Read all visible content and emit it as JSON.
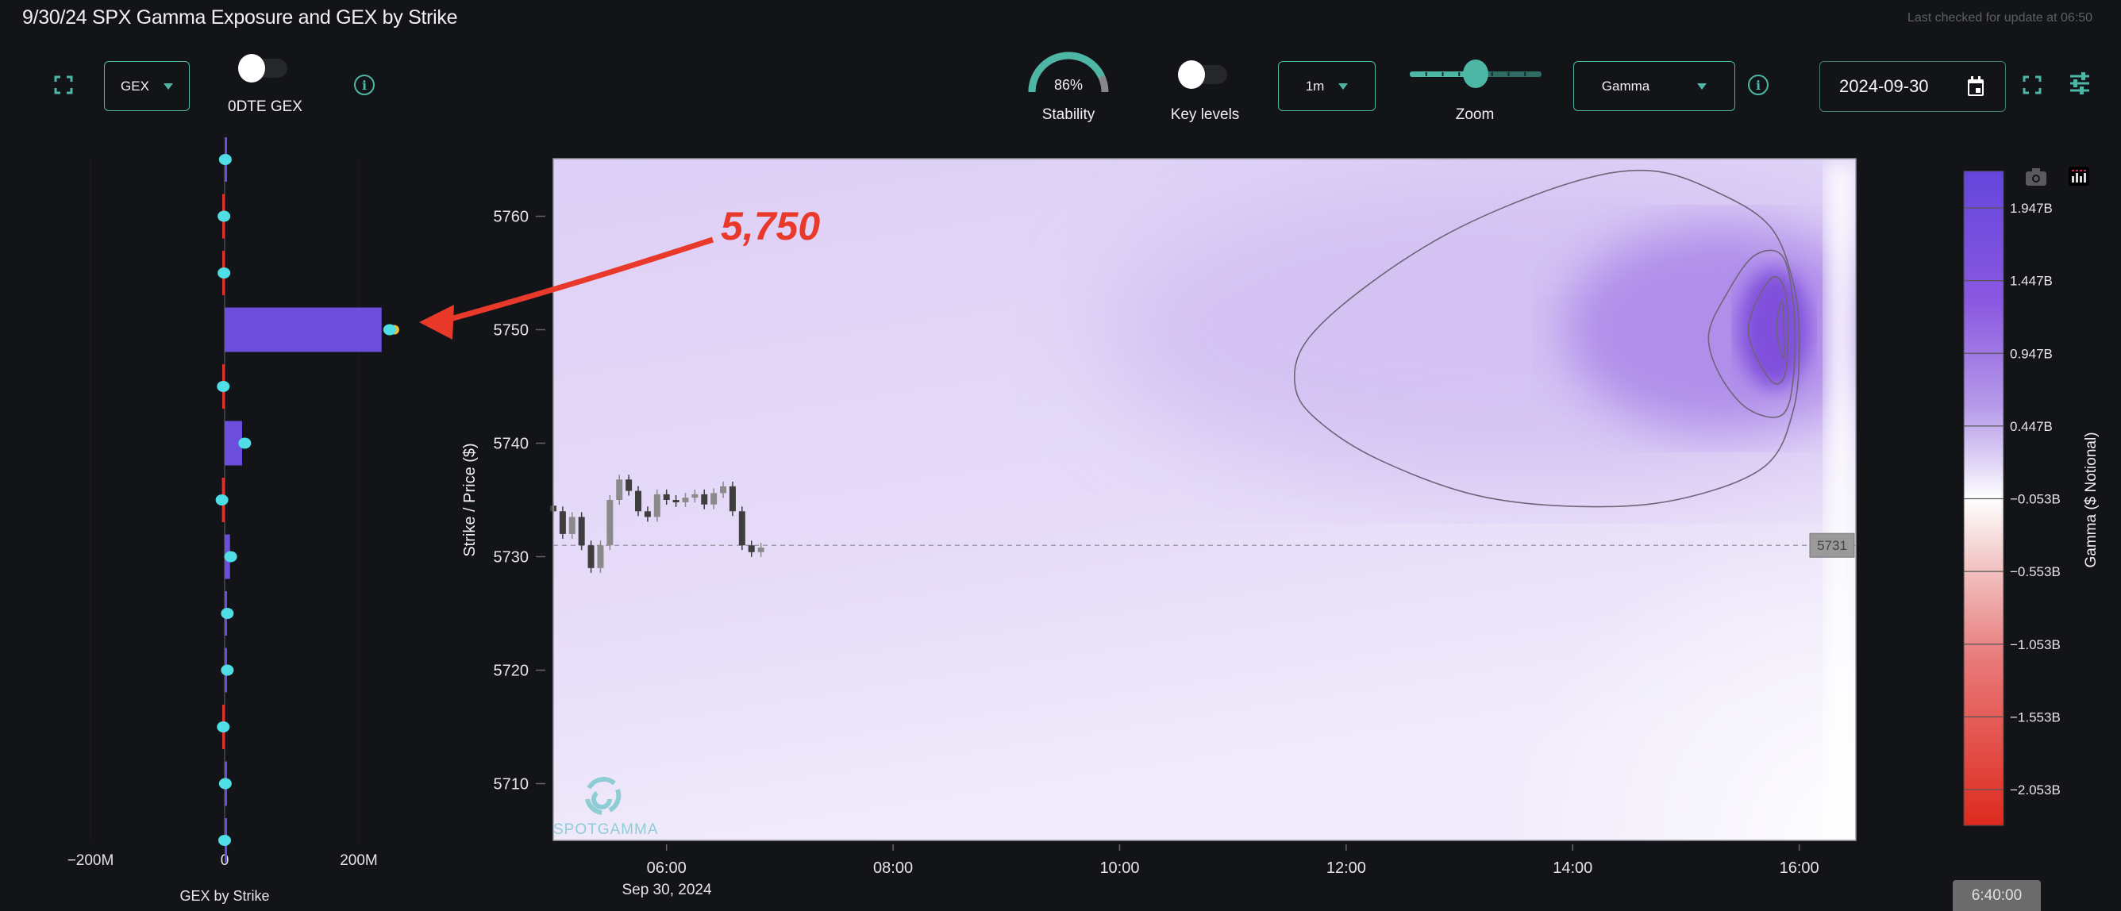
{
  "header": {
    "title": "9/30/24 SPX Gamma Exposure and GEX by Strike",
    "last_checked": "Last checked for update at 06:50"
  },
  "toolbar": {
    "gex_select": "GEX",
    "dte_label": "0DTE GEX",
    "dte_on": false,
    "stability_value": "86%",
    "stability_pct": 86,
    "stability_label": "Stability",
    "key_levels_label": "Key levels",
    "key_levels_on": false,
    "interval_select": "1m",
    "zoom_label": "Zoom",
    "zoom_level": 0.5,
    "metric_select": "Gamma",
    "date_value": "2024-09-30",
    "icons": [
      "expand-icon",
      "info-icon",
      "calendar-icon",
      "sliders-icon",
      "camera-icon",
      "bar-chart-icon"
    ]
  },
  "annotation": {
    "text": "5,750",
    "color": "#e8392b",
    "points_to_strike": 5750
  },
  "time_button": "6:40:00",
  "colors": {
    "background": "#131418",
    "accent": "#4db6a4",
    "positive_bar": "#6b4fdc",
    "negative_bar": "#e0302a",
    "marker": "#4fdde6"
  },
  "chart_data": [
    {
      "type": "bar",
      "orientation": "horizontal",
      "xlabel": "GEX by Strike",
      "x_ticks": [
        "−200M",
        "0",
        "200M"
      ],
      "x_tick_values": [
        -200,
        0,
        200
      ],
      "xlim_millions": [
        -280,
        300
      ],
      "strikes": [
        5765,
        5760,
        5755,
        5750,
        5745,
        5740,
        5735,
        5730,
        5725,
        5720,
        5715,
        5710,
        5705
      ],
      "values_millions": [
        1,
        -2,
        -2,
        234,
        -3,
        26,
        -4,
        8,
        3,
        3,
        -2,
        1,
        1
      ],
      "marker_values_millions": [
        1,
        -1,
        -1,
        246,
        -2,
        30,
        -4,
        9,
        4,
        4,
        -2,
        1,
        0
      ]
    },
    {
      "type": "heatmap",
      "ylabel": "Strike / Price ($)",
      "ylim": [
        5705,
        5765
      ],
      "y_ticks": [
        5710,
        5720,
        5730,
        5740,
        5750,
        5760
      ],
      "xlim": [
        "05:00",
        "16:30"
      ],
      "x_ticks": [
        "06:00",
        "08:00",
        "10:00",
        "12:00",
        "14:00",
        "16:00"
      ],
      "x_date_label": "Sep 30, 2024",
      "last_price": 5731,
      "last_price_label": "5731",
      "peak": {
        "time": "15:52",
        "strike": 5750
      },
      "contours": [
        [
          [
            "11:33",
            5745
          ],
          [
            "11:39",
            5749
          ],
          [
            "12:12",
            5754
          ],
          [
            "13:00",
            5759
          ],
          [
            "14:00",
            5763
          ],
          [
            "14:42",
            5764
          ],
          [
            "15:18",
            5762
          ],
          [
            "15:45",
            5759
          ],
          [
            "15:57",
            5754
          ],
          [
            "16:00",
            5749
          ],
          [
            "15:57",
            5743
          ],
          [
            "15:42",
            5738
          ],
          [
            "15:00",
            5735.2
          ],
          [
            "14:12",
            5734.4
          ],
          [
            "13:12",
            5735.3
          ],
          [
            "12:18",
            5738.5
          ],
          [
            "11:45",
            5742
          ]
        ],
        [
          [
            "15:12",
            5749.5
          ],
          [
            "15:21",
            5753
          ],
          [
            "15:36",
            5756.5
          ],
          [
            "15:51",
            5756.5
          ],
          [
            "15:57",
            5752
          ],
          [
            "15:57",
            5746
          ],
          [
            "15:51",
            5742.5
          ],
          [
            "15:33",
            5743
          ],
          [
            "15:18",
            5746
          ]
        ],
        [
          [
            "15:33",
            5750
          ],
          [
            "15:45",
            5754.5
          ],
          [
            "15:53",
            5753
          ],
          [
            "15:53",
            5746.5
          ],
          [
            "15:45",
            5745.5
          ]
        ],
        [
          [
            "15:48",
            5750
          ],
          [
            "15:51",
            5752.5
          ],
          [
            "15:52",
            5747.5
          ]
        ]
      ],
      "price_series": {
        "times": [
          "05:00",
          "05:05",
          "05:10",
          "05:15",
          "05:20",
          "05:25",
          "05:30",
          "05:35",
          "05:40",
          "05:45",
          "05:50",
          "05:55",
          "06:00",
          "06:05",
          "06:10",
          "06:15",
          "06:20",
          "06:25",
          "06:30",
          "06:35",
          "06:40",
          "06:45",
          "06:50"
        ],
        "close": [
          5734,
          5732,
          5733.5,
          5731,
          5729,
          5731,
          5735,
          5736.8,
          5735.8,
          5734,
          5733.5,
          5735.5,
          5735,
          5734.8,
          5735.2,
          5735.5,
          5734.6,
          5735.6,
          5736.2,
          5734,
          5731,
          5730.4,
          5730.8
        ]
      },
      "colorbar": {
        "title": "Gamma ($ Notional)",
        "ticks": [
          "1.947B",
          "1.447B",
          "0.947B",
          "0.447B",
          "−0.053B",
          "−0.553B",
          "−1.053B",
          "−1.553B",
          "−2.053B"
        ],
        "tick_values": [
          1.947,
          1.447,
          0.947,
          0.447,
          -0.053,
          -0.553,
          -1.053,
          -1.553,
          -2.053
        ],
        "range": [
          -2.3,
          2.2
        ]
      },
      "watermark": "SPOTGAMMA"
    }
  ]
}
